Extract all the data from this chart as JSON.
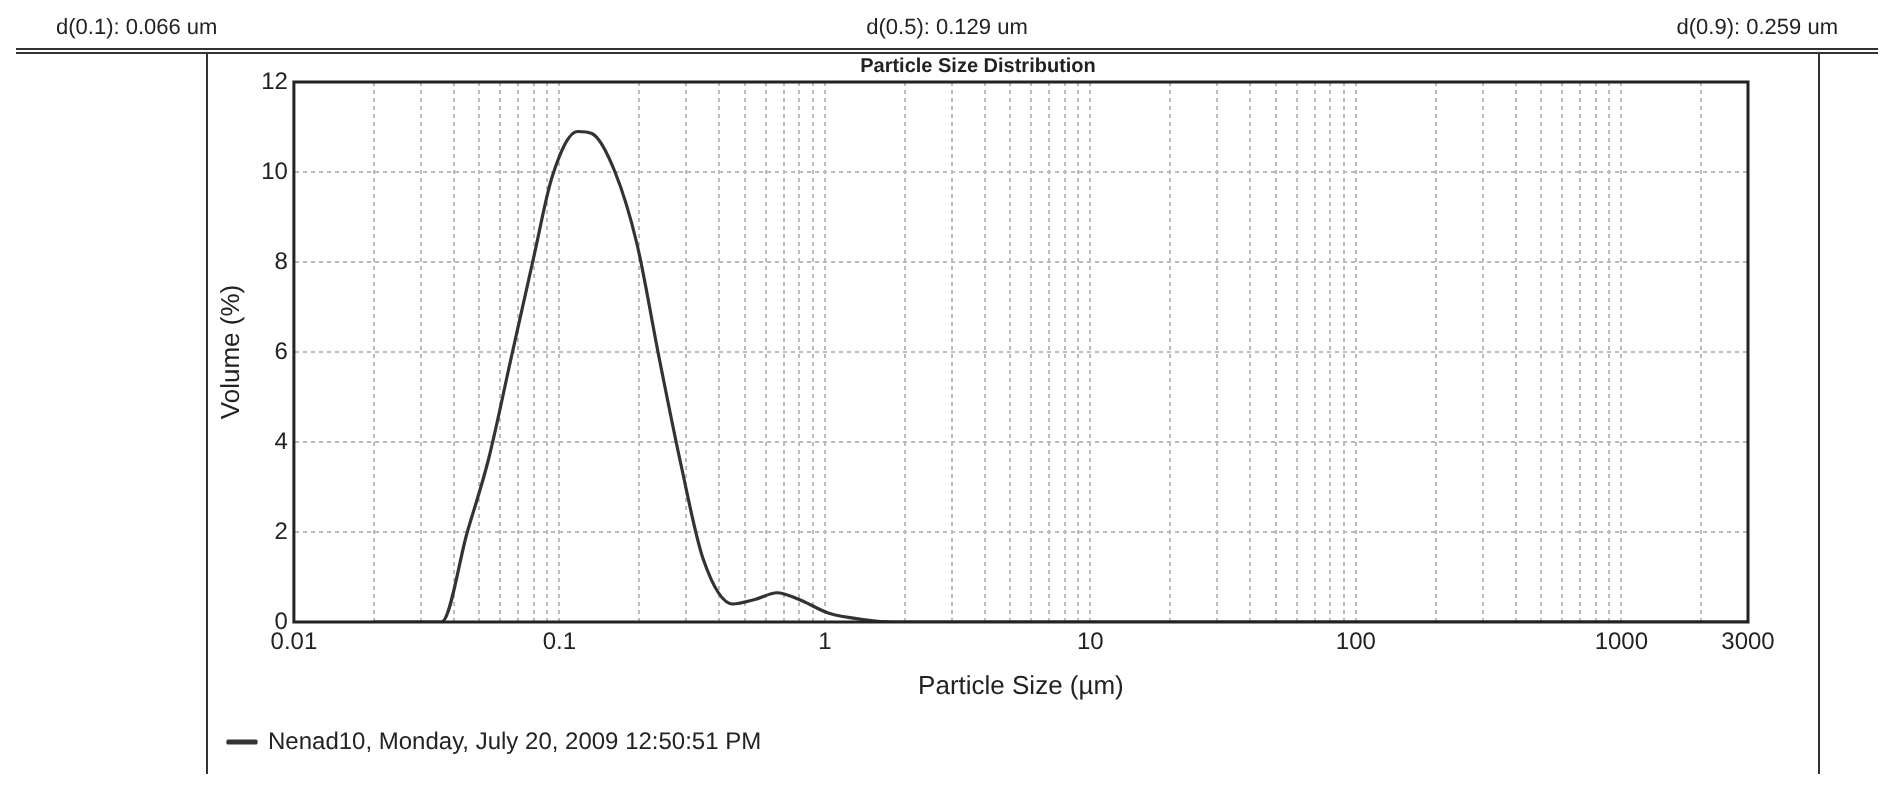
{
  "chart_data": {
    "type": "line",
    "title": "Particle Size Distribution",
    "xlabel": "Particle Size (µm)",
    "ylabel": "Volume (%)",
    "annotations": [
      "d(0.1): 0.066 um",
      "d(0.5): 0.129 um",
      "d(0.9): 0.259 um"
    ],
    "x": [
      0.02,
      0.036,
      0.045,
      0.054,
      0.066,
      0.08,
      0.094,
      0.117,
      0.133,
      0.162,
      0.196,
      0.237,
      0.287,
      0.348,
      0.45,
      0.545,
      0.66,
      0.8,
      1.03,
      1.42,
      1.8,
      3000
    ],
    "series": [
      {
        "name": "Nenad10, Monday, July 20, 2009 12:50:51 PM",
        "color": "#333333",
        "values": [
          0,
          0,
          2.0,
          3.6,
          5.9,
          8.1,
          9.9,
          10.9,
          10.85,
          10.0,
          8.4,
          5.9,
          3.5,
          1.4,
          0.4,
          0.5,
          0.65,
          0.5,
          0.2,
          0.05,
          0,
          0
        ]
      }
    ],
    "log": "x",
    "xlim": [
      0.01,
      3000
    ],
    "xticks": [
      0.01,
      {
        "value": 0.02,
        "label": null
      },
      {
        "value": 0.03,
        "label": null
      },
      {
        "value": 0.04,
        "label": null
      },
      {
        "value": 0.05,
        "label": null
      },
      {
        "value": 0.06,
        "label": null
      },
      {
        "value": 0.07,
        "label": null
      },
      {
        "value": 0.08,
        "label": null
      },
      {
        "value": 0.09,
        "label": null
      },
      0.1,
      {
        "value": 0.2,
        "label": null
      },
      {
        "value": 0.3,
        "label": null
      },
      {
        "value": 0.4,
        "label": null
      },
      {
        "value": 0.5,
        "label": null
      },
      {
        "value": 0.6,
        "label": null
      },
      {
        "value": 0.7,
        "label": null
      },
      {
        "value": 0.8,
        "label": null
      },
      {
        "value": 0.9,
        "label": null
      },
      1,
      {
        "value": 2,
        "label": null
      },
      {
        "value": 3,
        "label": null
      },
      {
        "value": 4,
        "label": null
      },
      {
        "value": 5,
        "label": null
      },
      {
        "value": 6,
        "label": null
      },
      {
        "value": 7,
        "label": null
      },
      {
        "value": 8,
        "label": null
      },
      {
        "value": 9,
        "label": null
      },
      10,
      {
        "value": 20,
        "label": null
      },
      {
        "value": 30,
        "label": null
      },
      {
        "value": 40,
        "label": null
      },
      {
        "value": 50,
        "label": null
      },
      {
        "value": 60,
        "label": null
      },
      {
        "value": 70,
        "label": null
      },
      {
        "value": 80,
        "label": null
      },
      {
        "value": 90,
        "label": null
      },
      100,
      {
        "value": 200,
        "label": null
      },
      {
        "value": 300,
        "label": null
      },
      {
        "value": 400,
        "label": null
      },
      {
        "value": 500,
        "label": null
      },
      {
        "value": 600,
        "label": null
      },
      {
        "value": 700,
        "label": null
      },
      {
        "value": 800,
        "label": null
      },
      {
        "value": 900,
        "label": null
      },
      1000,
      {
        "value": 2000,
        "label": null
      },
      3000
    ],
    "ylim": [
      0,
      12
    ],
    "yticks": [
      0,
      2,
      4,
      6,
      8,
      10,
      12
    ],
    "grid": true,
    "legend": "bottom",
    "marker": "none",
    "line_style": "solid"
  }
}
